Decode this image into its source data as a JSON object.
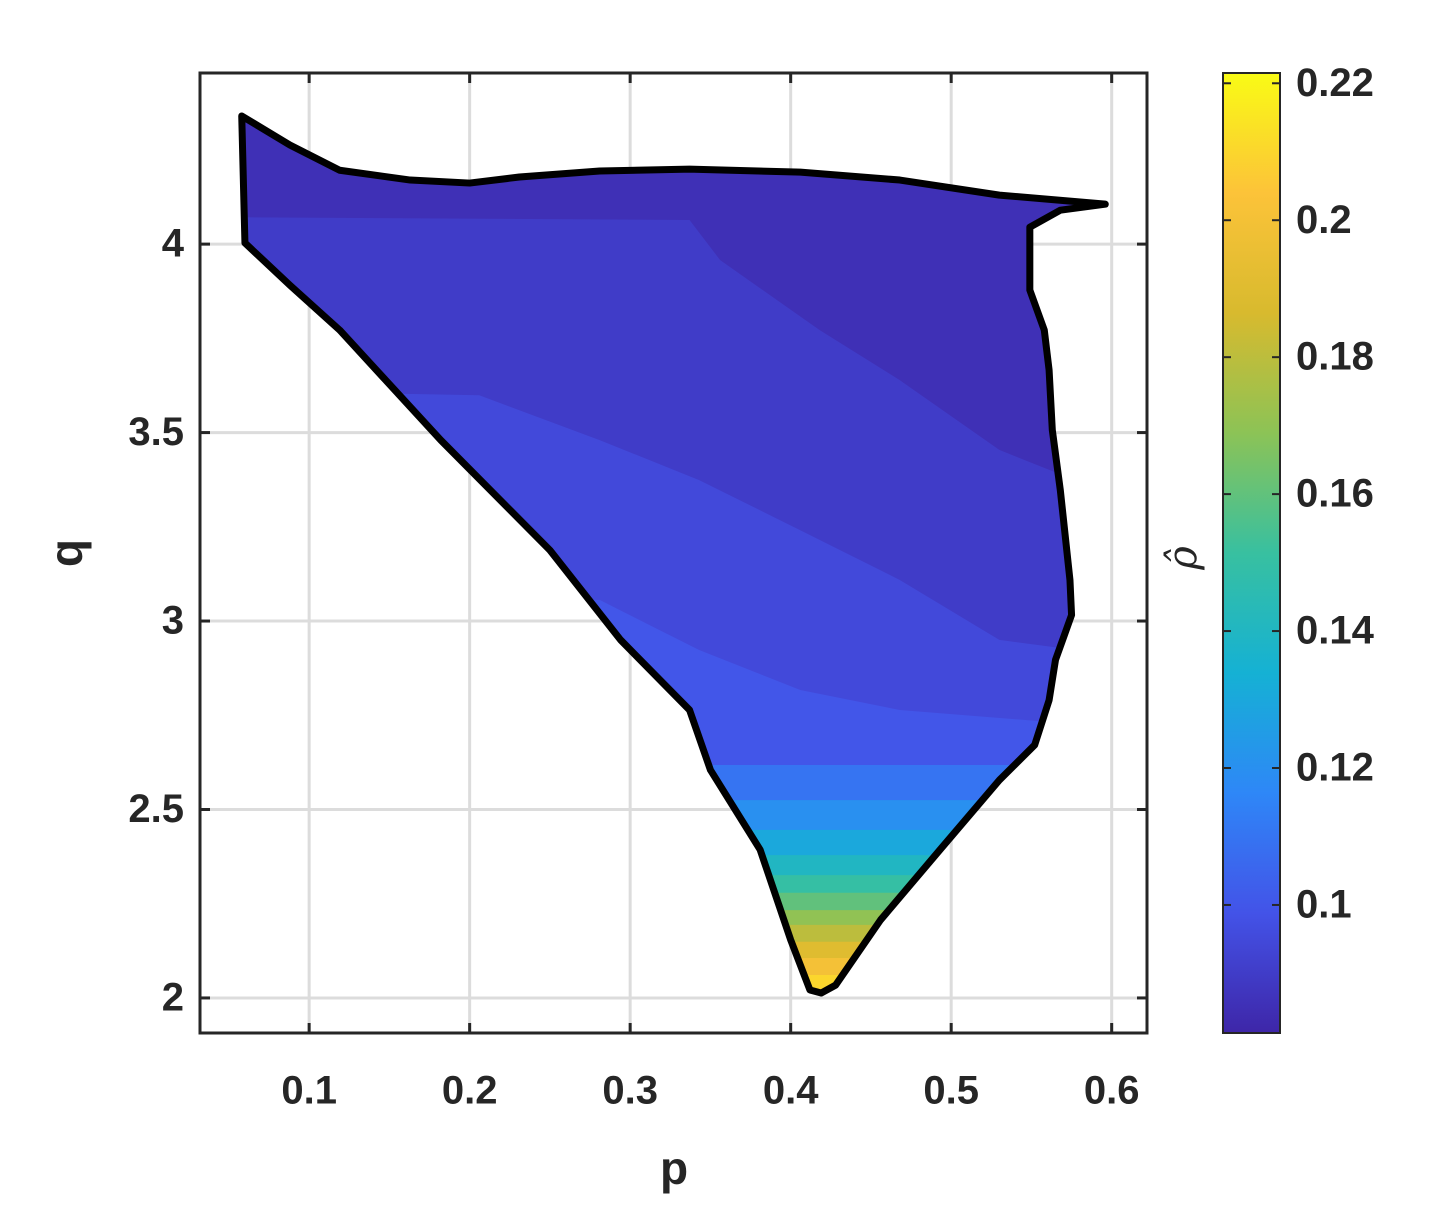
{
  "chart_data": {
    "type": "contour",
    "xlabel": "p",
    "ylabel": "q",
    "colorbar_label": "ρ̂",
    "xlim": [
      0.032,
      0.622
    ],
    "ylim": [
      1.907,
      4.454
    ],
    "xticks": [
      0.1,
      0.2,
      0.3,
      0.4,
      0.5,
      0.6
    ],
    "yticks": [
      2,
      2.5,
      3,
      3.5,
      4
    ],
    "grid": true,
    "clim": [
      0.0813,
      0.2215
    ],
    "cticks": [
      0.1,
      0.12,
      0.14,
      0.16,
      0.18,
      0.2,
      0.22
    ],
    "colormap": [
      "#3e26a8",
      "#4353e8",
      "#2e87f7",
      "#15b1d4",
      "#38c0a0",
      "#8cc356",
      "#d8ba2e",
      "#fcc339",
      "#f9fb15"
    ],
    "boundary": {
      "level": 0.09,
      "color": "#000000",
      "x": [
        0.058,
        0.088,
        0.119,
        0.163,
        0.2,
        0.231,
        0.281,
        0.337,
        0.406,
        0.468,
        0.53,
        0.596,
        0.568,
        0.549,
        0.549,
        0.558,
        0.561,
        0.563,
        0.568,
        0.574,
        0.575,
        0.565,
        0.561,
        0.552,
        0.53,
        0.493,
        0.456,
        0.428,
        0.419,
        0.412,
        0.4,
        0.381,
        0.35,
        0.337,
        0.294,
        0.25,
        0.182,
        0.119,
        0.088,
        0.06
      ],
      "y": [
        4.34,
        4.263,
        4.196,
        4.17,
        4.162,
        4.178,
        4.194,
        4.199,
        4.191,
        4.17,
        4.13,
        4.106,
        4.09,
        4.045,
        3.878,
        3.772,
        3.666,
        3.507,
        3.347,
        3.109,
        3.016,
        2.897,
        2.79,
        2.671,
        2.578,
        2.393,
        2.207,
        2.034,
        2.013,
        2.021,
        2.154,
        2.393,
        2.605,
        2.764,
        2.95,
        3.188,
        3.48,
        3.772,
        3.891,
        4.003
      ]
    },
    "bands": [
      {
        "level": 0.085,
        "side": "above",
        "x": [
          0.032,
          0.337,
          0.356,
          0.418,
          0.468,
          0.53,
          0.624
        ],
        "y": [
          4.072,
          4.064,
          3.958,
          3.772,
          3.639,
          3.454,
          3.294
        ]
      },
      {
        "level": 0.095,
        "side": "below",
        "x": [
          0.032,
          0.206,
          0.281,
          0.343,
          0.406,
          0.468,
          0.53,
          0.624
        ],
        "y": [
          3.613,
          3.599,
          3.48,
          3.374,
          3.241,
          3.109,
          2.95,
          2.897
        ]
      },
      {
        "level": 0.1,
        "side": "below",
        "x": [
          0.032,
          0.281,
          0.343,
          0.406,
          0.468,
          0.624
        ],
        "y": [
          3.056,
          3.056,
          2.923,
          2.817,
          2.764,
          2.711
        ]
      },
      {
        "level": 0.11,
        "side": "below",
        "x": [
          0.032,
          0.624
        ],
        "y": [
          2.618,
          2.618
        ]
      },
      {
        "level": 0.12,
        "side": "below",
        "x": [
          0.032,
          0.624
        ],
        "y": [
          2.525,
          2.525
        ]
      },
      {
        "level": 0.13,
        "side": "below",
        "x": [
          0.032,
          0.624
        ],
        "y": [
          2.446,
          2.446
        ]
      },
      {
        "level": 0.14,
        "side": "below",
        "x": [
          0.032,
          0.624
        ],
        "y": [
          2.379,
          2.379
        ]
      },
      {
        "level": 0.15,
        "side": "below",
        "x": [
          0.032,
          0.624
        ],
        "y": [
          2.326,
          2.326
        ]
      },
      {
        "level": 0.16,
        "side": "below",
        "x": [
          0.032,
          0.624
        ],
        "y": [
          2.279,
          2.279
        ]
      },
      {
        "level": 0.17,
        "side": "below",
        "x": [
          0.032,
          0.624
        ],
        "y": [
          2.233,
          2.233
        ]
      },
      {
        "level": 0.18,
        "side": "below",
        "x": [
          0.032,
          0.624
        ],
        "y": [
          2.194,
          2.194
        ]
      },
      {
        "level": 0.19,
        "side": "below",
        "x": [
          0.032,
          0.624
        ],
        "y": [
          2.149,
          2.149
        ]
      },
      {
        "level": 0.2,
        "side": "below",
        "x": [
          0.032,
          0.624
        ],
        "y": [
          2.106,
          2.106
        ]
      },
      {
        "level": 0.21,
        "side": "below",
        "x": [
          0.032,
          0.624
        ],
        "y": [
          2.061,
          2.061
        ]
      }
    ]
  }
}
